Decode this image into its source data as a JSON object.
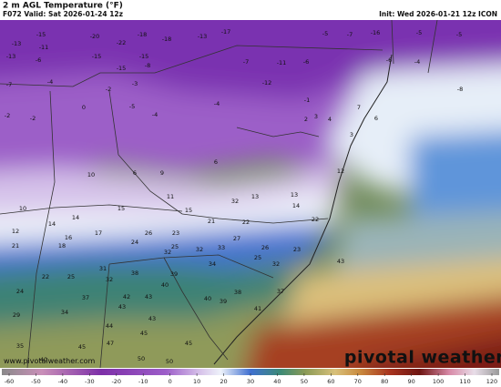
{
  "header": {
    "title": "2 m AGL Temperature (°F)",
    "valid": "F072 Valid: Sat 2026-01-24 12z",
    "init": "Init: Wed 2026-01-21 12z ICON"
  },
  "map_values": [
    -15,
    -20,
    -22,
    -18,
    -18,
    -13,
    -17,
    -5,
    -7,
    -16,
    -5,
    -5,
    -13,
    -11,
    -15,
    -15,
    -8,
    -13,
    -6,
    -15,
    -7,
    -11,
    -6,
    -6,
    -4,
    -7,
    -4,
    -2,
    -3,
    -12,
    -8,
    -2,
    -2,
    0,
    -5,
    -4,
    -4,
    -1,
    2,
    3,
    4,
    7,
    6,
    3,
    12,
    6,
    10,
    6,
    9,
    11,
    15,
    15,
    13,
    32,
    13,
    14,
    21,
    22,
    22,
    10,
    14,
    14,
    17,
    18,
    16,
    12,
    21,
    24,
    26,
    23,
    25,
    32,
    33,
    27,
    26,
    23,
    25,
    32,
    32,
    22,
    25,
    31,
    38,
    32,
    39,
    34,
    40,
    24,
    37,
    42,
    43,
    43,
    40,
    38,
    39,
    41,
    37,
    29,
    34,
    44,
    43,
    45,
    47,
    45,
    35,
    45,
    50,
    50,
    40,
    43
  ],
  "colorbar": {
    "ticks": [
      -60,
      -50,
      -40,
      -30,
      -20,
      -10,
      0,
      10,
      20,
      30,
      40,
      50,
      60,
      70,
      80,
      90,
      100,
      110,
      120
    ]
  },
  "watermark": {
    "url": "www.pivotalweather.com",
    "brand": "pivotal weather"
  }
}
